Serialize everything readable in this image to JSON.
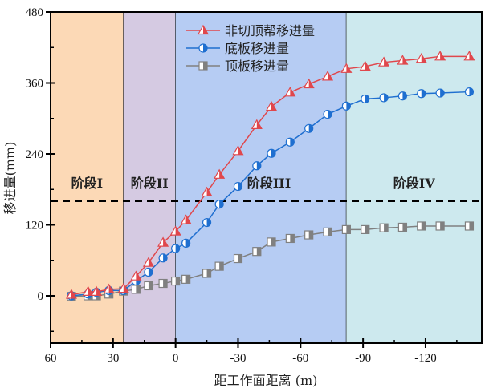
{
  "chart_data": {
    "type": "line",
    "title": "",
    "xlabel": "距工作面距离 (m)",
    "ylabel": "移进量(mm)",
    "xlim": [
      60,
      -147
    ],
    "ylim": [
      -80,
      480
    ],
    "x_reversed": true,
    "xticks": [
      60,
      30,
      0,
      -30,
      -60,
      -90,
      -120
    ],
    "yticks": [
      0,
      120,
      240,
      360,
      480
    ],
    "grid": false,
    "legend_position": "top-left",
    "x": [
      50,
      42,
      38,
      32,
      25,
      19,
      13,
      6,
      0,
      -5,
      -15,
      -21,
      -30,
      -39,
      -46,
      -55,
      -64,
      -73,
      -82,
      -91,
      -100,
      -109,
      -118,
      -127,
      -141
    ],
    "series": [
      {
        "name": "非切顶帮移进量",
        "color": "#e0474c",
        "marker": "triangle",
        "values": [
          2,
          7,
          7,
          11,
          12,
          33,
          56,
          90,
          109,
          128,
          175,
          205,
          245,
          289,
          320,
          344,
          358,
          371,
          384,
          388,
          395,
          398,
          401,
          405,
          405
        ]
      },
      {
        "name": "底板移进量",
        "color": "#1f6fd0",
        "marker": "circle",
        "values": [
          0,
          3,
          6,
          9,
          9,
          25,
          40,
          64,
          80,
          89,
          124,
          155,
          185,
          220,
          241,
          260,
          283,
          307,
          321,
          333,
          335,
          338,
          342,
          343,
          345
        ]
      },
      {
        "name": "顶板移进量",
        "color": "#808080",
        "marker": "square",
        "values": [
          -1,
          0,
          0,
          3,
          8,
          11,
          17,
          21,
          25,
          28,
          38,
          50,
          63,
          75,
          91,
          97,
          103,
          108,
          112,
          112,
          115,
          116,
          118,
          118,
          118
        ]
      }
    ],
    "stages": [
      {
        "label": "阶段I",
        "from": 60,
        "to": 25,
        "color": "#fcd9b6"
      },
      {
        "label": "阶段II",
        "from": 25,
        "to": 0,
        "color": "#d5cae2"
      },
      {
        "label": "阶段III",
        "from": 0,
        "to": -82,
        "color": "#b6ccf3"
      },
      {
        "label": "阶段IV",
        "from": -82,
        "to": -147,
        "color": "#cde9ee"
      }
    ],
    "reference_line": {
      "y": 160,
      "style": "dashed"
    }
  }
}
